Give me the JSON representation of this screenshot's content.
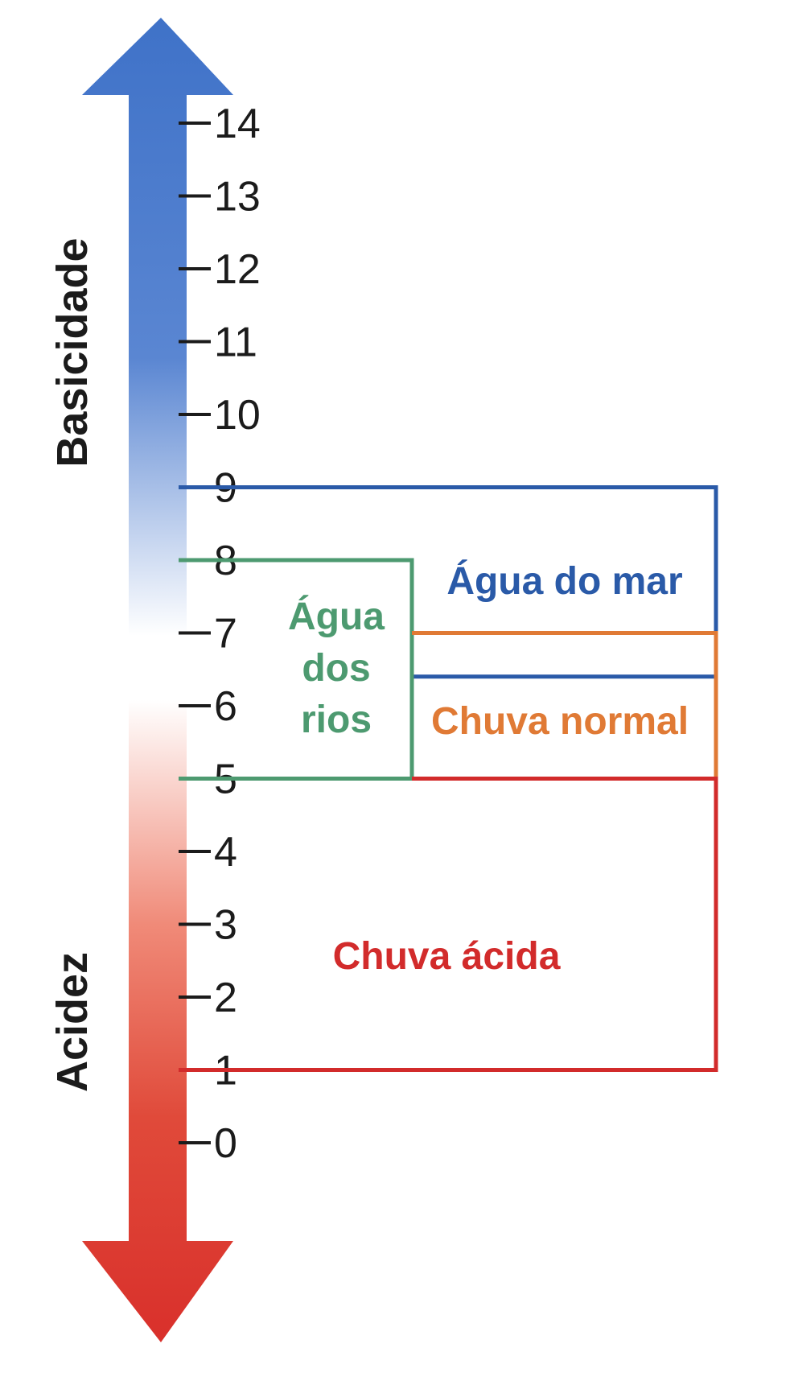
{
  "diagram": {
    "scale": {
      "min": 0,
      "max": 14,
      "ticks": [
        "0",
        "1",
        "2",
        "3",
        "4",
        "5",
        "6",
        "7",
        "8",
        "9",
        "10",
        "11",
        "12",
        "13",
        "14"
      ]
    },
    "axis_labels": {
      "top": "Basicidade",
      "bottom": "Acidez"
    },
    "colors": {
      "base": "#3f72c8",
      "acid": "#d9302b",
      "sea": "#2a5aa8",
      "rivers": "#4d9a70",
      "normal_rain": "#e07a35",
      "acid_rain": "#d22b2b",
      "text": "#1b1b1b"
    },
    "ranges": [
      {
        "id": "agua-do-mar",
        "lines": [
          "Água do mar"
        ],
        "ph_low": 6.4,
        "ph_high": 9,
        "color": "#2a5aa8"
      },
      {
        "id": "agua-dos-rios",
        "lines": [
          "Água",
          "dos",
          "rios"
        ],
        "ph_low": 5,
        "ph_high": 8,
        "color": "#4d9a70"
      },
      {
        "id": "chuva-normal",
        "lines": [
          "Chuva normal"
        ],
        "ph_low": 5,
        "ph_high": 7,
        "color": "#e07a35"
      },
      {
        "id": "chuva-acida",
        "lines": [
          "Chuva ácida"
        ],
        "ph_low": 1,
        "ph_high": 5,
        "color": "#d22b2b"
      }
    ]
  }
}
